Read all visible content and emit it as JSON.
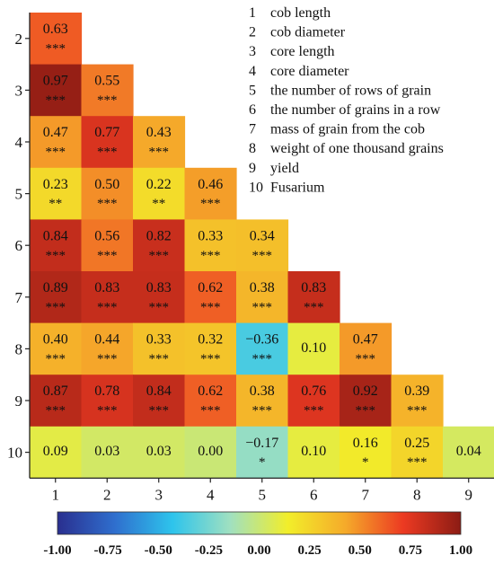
{
  "chart_data": {
    "type": "heatmap",
    "title": "",
    "xlabel": "",
    "ylabel": "",
    "rows": [
      "2",
      "3",
      "4",
      "5",
      "6",
      "7",
      "8",
      "9",
      "10"
    ],
    "columns": [
      "1",
      "2",
      "3",
      "4",
      "5",
      "6",
      "7",
      "8",
      "9"
    ],
    "cells": [
      {
        "row": "2",
        "col": "1",
        "value": 0.63,
        "label": "0.63",
        "sig": "***"
      },
      {
        "row": "3",
        "col": "1",
        "value": 0.97,
        "label": "0.97",
        "sig": "***"
      },
      {
        "row": "3",
        "col": "2",
        "value": 0.55,
        "label": "0.55",
        "sig": "***"
      },
      {
        "row": "4",
        "col": "1",
        "value": 0.47,
        "label": "0.47",
        "sig": "***"
      },
      {
        "row": "4",
        "col": "2",
        "value": 0.77,
        "label": "0.77",
        "sig": "***"
      },
      {
        "row": "4",
        "col": "3",
        "value": 0.43,
        "label": "0.43",
        "sig": "***"
      },
      {
        "row": "5",
        "col": "1",
        "value": 0.23,
        "label": "0.23",
        "sig": "**"
      },
      {
        "row": "5",
        "col": "2",
        "value": 0.5,
        "label": "0.50",
        "sig": "***"
      },
      {
        "row": "5",
        "col": "3",
        "value": 0.22,
        "label": "0.22",
        "sig": "**"
      },
      {
        "row": "5",
        "col": "4",
        "value": 0.46,
        "label": "0.46",
        "sig": "***"
      },
      {
        "row": "6",
        "col": "1",
        "value": 0.84,
        "label": "0.84",
        "sig": "***"
      },
      {
        "row": "6",
        "col": "2",
        "value": 0.56,
        "label": "0.56",
        "sig": "***"
      },
      {
        "row": "6",
        "col": "3",
        "value": 0.82,
        "label": "0.82",
        "sig": "***"
      },
      {
        "row": "6",
        "col": "4",
        "value": 0.33,
        "label": "0.33",
        "sig": "***"
      },
      {
        "row": "6",
        "col": "5",
        "value": 0.34,
        "label": "0.34",
        "sig": "***"
      },
      {
        "row": "7",
        "col": "1",
        "value": 0.89,
        "label": "0.89",
        "sig": "***"
      },
      {
        "row": "7",
        "col": "2",
        "value": 0.83,
        "label": "0.83",
        "sig": "***"
      },
      {
        "row": "7",
        "col": "3",
        "value": 0.83,
        "label": "0.83",
        "sig": "***"
      },
      {
        "row": "7",
        "col": "4",
        "value": 0.62,
        "label": "0.62",
        "sig": "***"
      },
      {
        "row": "7",
        "col": "5",
        "value": 0.38,
        "label": "0.38",
        "sig": "***"
      },
      {
        "row": "7",
        "col": "6",
        "value": 0.83,
        "label": "0.83",
        "sig": "***"
      },
      {
        "row": "8",
        "col": "1",
        "value": 0.4,
        "label": "0.40",
        "sig": "***"
      },
      {
        "row": "8",
        "col": "2",
        "value": 0.44,
        "label": "0.44",
        "sig": "***"
      },
      {
        "row": "8",
        "col": "3",
        "value": 0.33,
        "label": "0.33",
        "sig": "***"
      },
      {
        "row": "8",
        "col": "4",
        "value": 0.32,
        "label": "0.32",
        "sig": "***"
      },
      {
        "row": "8",
        "col": "5",
        "value": -0.36,
        "label": "−0.36",
        "sig": "***"
      },
      {
        "row": "8",
        "col": "6",
        "value": 0.1,
        "label": "0.10",
        "sig": ""
      },
      {
        "row": "8",
        "col": "7",
        "value": 0.47,
        "label": "0.47",
        "sig": "***"
      },
      {
        "row": "9",
        "col": "1",
        "value": 0.87,
        "label": "0.87",
        "sig": "***"
      },
      {
        "row": "9",
        "col": "2",
        "value": 0.78,
        "label": "0.78",
        "sig": "***"
      },
      {
        "row": "9",
        "col": "3",
        "value": 0.84,
        "label": "0.84",
        "sig": "***"
      },
      {
        "row": "9",
        "col": "4",
        "value": 0.62,
        "label": "0.62",
        "sig": "***"
      },
      {
        "row": "9",
        "col": "5",
        "value": 0.38,
        "label": "0.38",
        "sig": "***"
      },
      {
        "row": "9",
        "col": "6",
        "value": 0.76,
        "label": "0.76",
        "sig": "***"
      },
      {
        "row": "9",
        "col": "7",
        "value": 0.92,
        "label": "0.92",
        "sig": "***"
      },
      {
        "row": "9",
        "col": "8",
        "value": 0.39,
        "label": "0.39",
        "sig": "***"
      },
      {
        "row": "10",
        "col": "1",
        "value": 0.09,
        "label": "0.09",
        "sig": ""
      },
      {
        "row": "10",
        "col": "2",
        "value": 0.03,
        "label": "0.03",
        "sig": ""
      },
      {
        "row": "10",
        "col": "3",
        "value": 0.03,
        "label": "0.03",
        "sig": ""
      },
      {
        "row": "10",
        "col": "4",
        "value": 0.0,
        "label": "0.00",
        "sig": ""
      },
      {
        "row": "10",
        "col": "5",
        "value": -0.17,
        "label": "−0.17",
        "sig": "*"
      },
      {
        "row": "10",
        "col": "6",
        "value": 0.1,
        "label": "0.10",
        "sig": ""
      },
      {
        "row": "10",
        "col": "7",
        "value": 0.16,
        "label": "0.16",
        "sig": "*"
      },
      {
        "row": "10",
        "col": "8",
        "value": 0.25,
        "label": "0.25",
        "sig": "***"
      },
      {
        "row": "10",
        "col": "9",
        "value": 0.04,
        "label": "0.04",
        "sig": ""
      }
    ],
    "legend": [
      {
        "num": "1",
        "text": "cob length"
      },
      {
        "num": "2",
        "text": "cob diameter"
      },
      {
        "num": "3",
        "text": "core length"
      },
      {
        "num": "4",
        "text": "core diameter"
      },
      {
        "num": "5",
        "text": "the number of rows of grain"
      },
      {
        "num": "6",
        "text": "the number of grains in a row"
      },
      {
        "num": "7",
        "text": "mass of grain from the cob"
      },
      {
        "num": "8",
        "text": "weight of one thousand grains"
      },
      {
        "num": "9",
        "text": "yield"
      },
      {
        "num": "10",
        "text": "Fusarium"
      }
    ],
    "colorbar": {
      "range": [
        -1.0,
        1.0
      ],
      "ticks": [
        "-1.00",
        "-0.75",
        "-0.50",
        "-0.25",
        "0.00",
        "0.25",
        "0.50",
        "0.75",
        "1.00"
      ],
      "colors": [
        "#2a2f8f",
        "#2f6fce",
        "#2ec4ec",
        "#a0e0c0",
        "#f2ee2a",
        "#f5aa2a",
        "#ec3a22",
        "#8c1c14"
      ]
    },
    "grid": false,
    "legend_position": "top-right"
  }
}
